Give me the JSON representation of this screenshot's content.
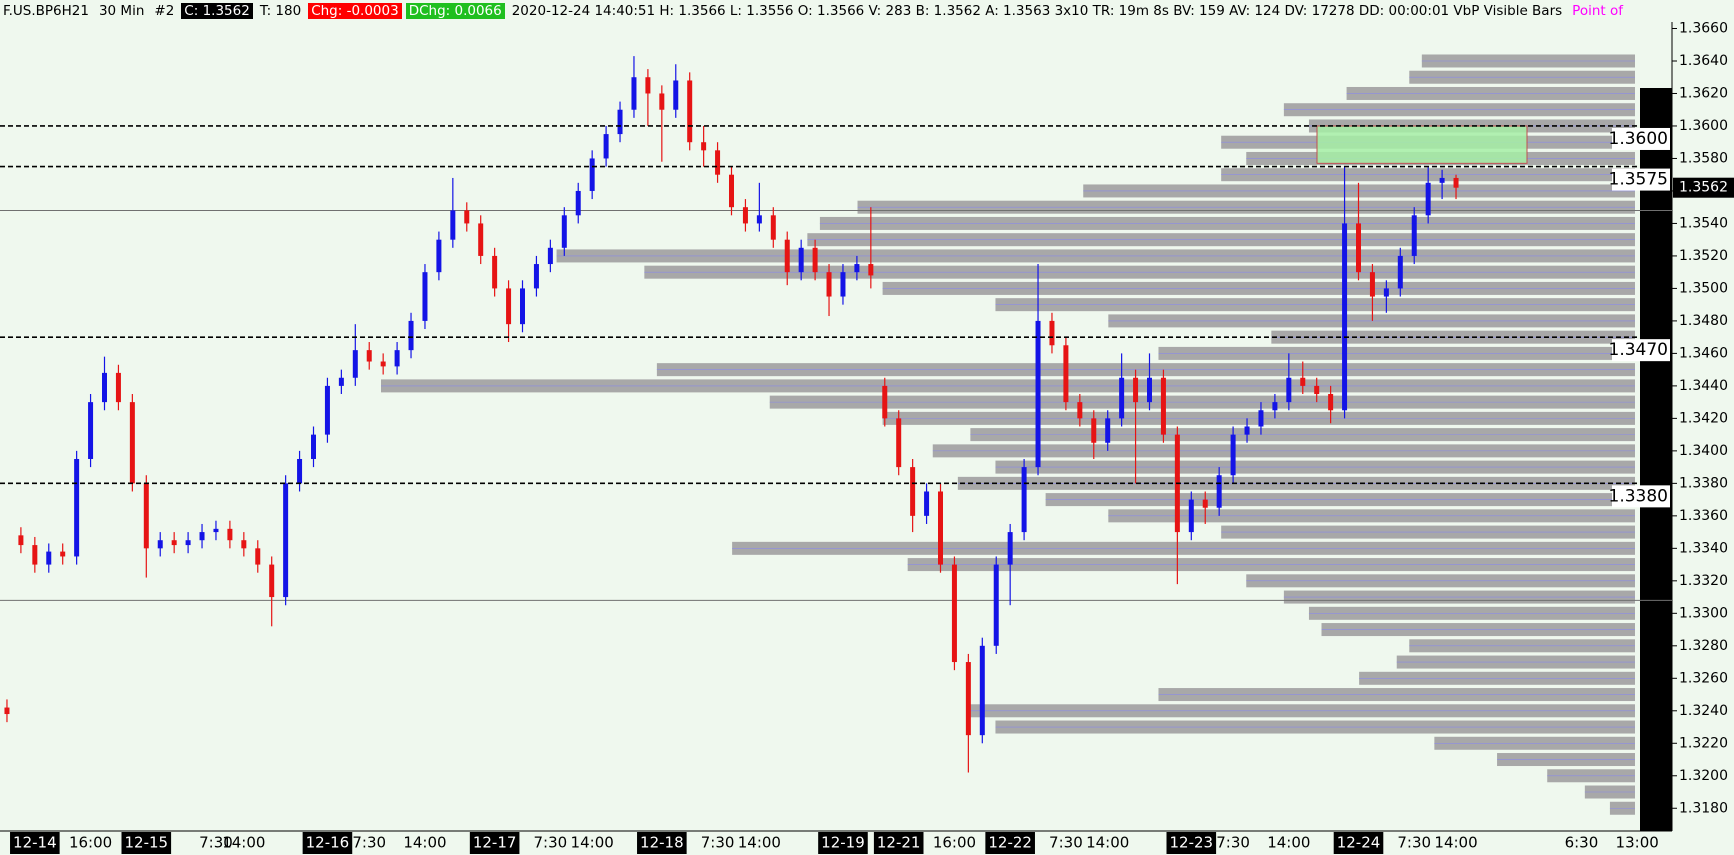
{
  "header": [
    {
      "text": "F.US.BP6H21",
      "color": "#000000"
    },
    {
      "text": "30 Min",
      "color": "#000000"
    },
    {
      "text": "#2",
      "color": "#000000"
    },
    {
      "text": "C: 1.3562",
      "color": "#ffffff",
      "background": "#000000"
    },
    {
      "text": "T: 180",
      "color": "#000000"
    },
    {
      "text": "Chg: -0.0003",
      "color": "#ffffff",
      "background": "#ff0000"
    },
    {
      "text": "DChg: 0.0066",
      "color": "#ffffff",
      "background": "#1fbf1f"
    },
    {
      "text": "2020-12-24 14:40:51 H: 1.3566 L: 1.3556 O: 1.3566 V: 283 B: 1.3562 A: 1.3563 3x10 TR: 19m 8s BV: 159 AV: 124 DV: 17278 DD: 00:00:01 VbP Visible Bars",
      "color": "#000000"
    },
    {
      "text": "Point of",
      "color": "#ff00ff"
    }
  ],
  "chart_data": {
    "type": "candlestick",
    "up_color": "#1414e6",
    "down_color": "#e61414",
    "categories": [
      null,
      null,
      "12-14",
      null,
      null,
      null,
      "16:00",
      null,
      null,
      null,
      "12-15",
      null,
      null,
      null,
      null,
      "7:30",
      null,
      "14:00",
      null,
      null,
      null,
      null,
      null,
      "12-16",
      null,
      null,
      "7:30",
      null,
      null,
      null,
      "14:00",
      null,
      null,
      null,
      null,
      "12-17",
      null,
      null,
      null,
      "7:30",
      null,
      null,
      "14:00",
      null,
      null,
      null,
      null,
      "12-18",
      null,
      null,
      null,
      "7:30",
      null,
      null,
      "14:00",
      null,
      null,
      null,
      null,
      null,
      "12-19",
      null,
      null,
      null,
      "12-21",
      null,
      null,
      null,
      "16:00",
      null,
      null,
      null,
      "12-22",
      null,
      null,
      null,
      "7:30",
      null,
      null,
      "14:00",
      null,
      null,
      null,
      null,
      null,
      "12-23",
      null,
      null,
      "7:30",
      null,
      null,
      null,
      "14:00",
      null,
      null,
      null,
      null,
      "12-24",
      null,
      null,
      null,
      "7:30",
      null,
      null,
      "14:00",
      null,
      null,
      null,
      null,
      null,
      null,
      null,
      null,
      "6:30",
      null,
      null,
      null,
      "13:00",
      null,
      null
    ],
    "open": [
      1.3242,
      1.3348,
      1.3342,
      1.333,
      1.3338,
      1.3335,
      1.3395,
      1.343,
      1.3448,
      1.343,
      1.338,
      1.334,
      1.3345,
      1.3342,
      1.3345,
      1.335,
      1.3352,
      1.3345,
      1.334,
      1.333,
      1.331,
      1.338,
      1.3395,
      1.341,
      1.344,
      1.3445,
      1.3462,
      1.3455,
      1.3452,
      1.3462,
      1.348,
      1.351,
      1.353,
      1.3548,
      1.354,
      1.352,
      1.35,
      1.3478,
      1.35,
      1.3515,
      1.3525,
      1.3545,
      1.356,
      1.358,
      1.3595,
      1.361,
      1.363,
      1.362,
      1.361,
      1.3628,
      1.359,
      1.3585,
      1.357,
      1.355,
      1.354,
      1.3545,
      1.353,
      1.351,
      1.3525,
      1.351,
      1.3495,
      1.351,
      1.3515,
      1.344,
      1.342,
      1.339,
      1.336,
      1.3375,
      1.333,
      1.327,
      1.3225,
      1.328,
      1.333,
      1.335,
      1.339,
      1.348,
      1.3465,
      1.343,
      1.342,
      1.3405,
      1.342,
      1.3445,
      1.343,
      1.3445,
      1.341,
      1.335,
      1.337,
      1.3365,
      1.3385,
      1.341,
      1.3415,
      1.3425,
      1.343,
      1.3445,
      1.344,
      1.3435,
      1.3425,
      1.354,
      1.351,
      1.3495,
      1.35,
      1.352,
      1.3545,
      1.3565,
      1.3568,
      null,
      null,
      null,
      null,
      null,
      null,
      null,
      null,
      null,
      null,
      null,
      null,
      null,
      null,
      null
    ],
    "high": [
      1.3247,
      1.3353,
      1.3347,
      1.3343,
      1.3343,
      1.34,
      1.3435,
      1.3458,
      1.3453,
      1.3435,
      1.3385,
      1.335,
      1.335,
      1.335,
      1.3355,
      1.3357,
      1.3357,
      1.335,
      1.3345,
      1.3335,
      1.3385,
      1.34,
      1.3415,
      1.3445,
      1.345,
      1.3478,
      1.3467,
      1.346,
      1.3467,
      1.3485,
      1.3515,
      1.3535,
      1.3568,
      1.3553,
      1.3545,
      1.3525,
      1.3505,
      1.3505,
      1.352,
      1.353,
      1.355,
      1.3565,
      1.3585,
      1.36,
      1.3615,
      1.3643,
      1.3635,
      1.3625,
      1.3638,
      1.3633,
      1.36,
      1.359,
      1.3575,
      1.3555,
      1.3565,
      1.355,
      1.3535,
      1.353,
      1.353,
      1.3515,
      1.3515,
      1.352,
      1.355,
      1.3445,
      1.3425,
      1.3395,
      1.338,
      1.338,
      1.3335,
      1.3275,
      1.3285,
      1.3335,
      1.3355,
      1.3395,
      1.3515,
      1.3485,
      1.347,
      1.3435,
      1.3425,
      1.3425,
      1.346,
      1.345,
      1.346,
      1.345,
      1.3415,
      1.3375,
      1.3375,
      1.339,
      1.3415,
      1.342,
      1.343,
      1.3435,
      1.346,
      1.3455,
      1.3445,
      1.344,
      1.3575,
      1.3565,
      1.3515,
      1.3505,
      1.3525,
      1.355,
      1.3575,
      1.3573,
      1.357,
      null,
      null,
      null,
      null,
      null,
      null,
      null,
      null,
      null,
      null,
      null,
      null,
      null,
      null,
      null
    ],
    "low": [
      1.3233,
      1.3337,
      1.3325,
      1.3325,
      1.333,
      1.333,
      1.339,
      1.3425,
      1.3425,
      1.3375,
      1.3322,
      1.3335,
      1.3337,
      1.3337,
      1.334,
      1.3345,
      1.334,
      1.3335,
      1.3325,
      1.3292,
      1.3305,
      1.3375,
      1.339,
      1.3405,
      1.3435,
      1.344,
      1.345,
      1.3447,
      1.3447,
      1.3457,
      1.3475,
      1.3505,
      1.3525,
      1.3535,
      1.3515,
      1.3495,
      1.3467,
      1.3473,
      1.3495,
      1.351,
      1.352,
      1.354,
      1.3555,
      1.3575,
      1.359,
      1.3605,
      1.36,
      1.3578,
      1.3605,
      1.3585,
      1.3575,
      1.3565,
      1.3545,
      1.3535,
      1.3535,
      1.3525,
      1.3502,
      1.3505,
      1.3505,
      1.3483,
      1.349,
      1.3505,
      1.35,
      1.3415,
      1.3385,
      1.335,
      1.3355,
      1.3325,
      1.3265,
      1.3202,
      1.322,
      1.3275,
      1.3305,
      1.3345,
      1.3385,
      1.346,
      1.3425,
      1.3415,
      1.3395,
      1.34,
      1.3415,
      1.338,
      1.3425,
      1.3405,
      1.3318,
      1.3345,
      1.3355,
      1.336,
      1.338,
      1.3405,
      1.341,
      1.342,
      1.3425,
      1.3435,
      1.343,
      1.3417,
      1.342,
      1.3505,
      1.348,
      1.3485,
      1.3495,
      1.3515,
      1.354,
      1.3555,
      1.3555,
      null,
      null,
      null,
      null,
      null,
      null,
      null,
      null,
      null,
      null,
      null,
      null,
      null,
      null,
      null
    ],
    "close": [
      1.3238,
      1.3342,
      1.333,
      1.3338,
      1.3335,
      1.3395,
      1.343,
      1.3448,
      1.343,
      1.338,
      1.334,
      1.3345,
      1.3342,
      1.3345,
      1.335,
      1.3352,
      1.3345,
      1.334,
      1.333,
      1.331,
      1.338,
      1.3395,
      1.341,
      1.344,
      1.3445,
      1.3462,
      1.3455,
      1.3452,
      1.3462,
      1.348,
      1.351,
      1.353,
      1.3548,
      1.354,
      1.352,
      1.35,
      1.3478,
      1.35,
      1.3515,
      1.3525,
      1.3545,
      1.356,
      1.358,
      1.3595,
      1.361,
      1.363,
      1.362,
      1.361,
      1.3628,
      1.359,
      1.3585,
      1.357,
      1.355,
      1.354,
      1.3545,
      1.353,
      1.351,
      1.3525,
      1.351,
      1.3495,
      1.351,
      1.3515,
      1.3508,
      1.342,
      1.339,
      1.336,
      1.3375,
      1.333,
      1.327,
      1.3225,
      1.328,
      1.333,
      1.335,
      1.339,
      1.348,
      1.3465,
      1.343,
      1.342,
      1.3405,
      1.342,
      1.3445,
      1.343,
      1.3445,
      1.341,
      1.335,
      1.337,
      1.3365,
      1.3385,
      1.341,
      1.3415,
      1.3425,
      1.343,
      1.3445,
      1.344,
      1.3435,
      1.3425,
      1.354,
      1.351,
      1.3495,
      1.35,
      1.352,
      1.3545,
      1.3565,
      1.3568,
      1.3562,
      null,
      null,
      null,
      null,
      null,
      null,
      null,
      null,
      null,
      null,
      null,
      null,
      null,
      null,
      null
    ],
    "ylim": [
      1.3166,
      1.3664
    ],
    "yticks": [
      {
        "value": 1.318,
        "label": "1.3180"
      },
      {
        "value": 1.32,
        "label": "1.3200"
      },
      {
        "value": 1.322,
        "label": "1.3220"
      },
      {
        "value": 1.324,
        "label": "1.3240"
      },
      {
        "value": 1.326,
        "label": "1.3260"
      },
      {
        "value": 1.328,
        "label": "1.3280"
      },
      {
        "value": 1.33,
        "label": "1.3300"
      },
      {
        "value": 1.332,
        "label": "1.3320"
      },
      {
        "value": 1.334,
        "label": "1.3340"
      },
      {
        "value": 1.336,
        "label": "1.3360"
      },
      {
        "value": 1.338,
        "label": "1.3380"
      },
      {
        "value": 1.34,
        "label": "1.3400"
      },
      {
        "value": 1.342,
        "label": "1.3420"
      },
      {
        "value": 1.344,
        "label": "1.3440"
      },
      {
        "value": 1.346,
        "label": "1.3460"
      },
      {
        "value": 1.348,
        "label": "1.3480"
      },
      {
        "value": 1.35,
        "label": "1.3500"
      },
      {
        "value": 1.352,
        "label": "1.3520"
      },
      {
        "value": 1.354,
        "label": "1.3540"
      },
      {
        "value": 1.356,
        "label": "1.3560"
      },
      {
        "value": 1.358,
        "label": "1.3580"
      },
      {
        "value": 1.36,
        "label": "1.3600"
      },
      {
        "value": 1.362,
        "label": "1.3620"
      },
      {
        "value": 1.364,
        "label": "1.3640"
      },
      {
        "value": 1.366,
        "label": "1.3660"
      }
    ],
    "levels": [
      {
        "value": 1.36,
        "label": "1.3600"
      },
      {
        "value": 1.3575,
        "label": "1.3575"
      },
      {
        "value": 1.347,
        "label": "1.3470"
      },
      {
        "value": 1.338,
        "label": "1.3380"
      }
    ],
    "reference_lines": [
      1.3548,
      1.3308
    ],
    "zone": {
      "low": 1.3577,
      "high": 1.36,
      "color": "#a6eea6"
    },
    "volume_profile": {
      "color": "#a8a8a8",
      "prices": [
        1.364,
        1.363,
        1.362,
        1.361,
        1.36,
        1.359,
        1.358,
        1.357,
        1.356,
        1.355,
        1.354,
        1.353,
        1.352,
        1.351,
        1.35,
        1.349,
        1.348,
        1.347,
        1.346,
        1.345,
        1.344,
        1.343,
        1.342,
        1.341,
        1.34,
        1.339,
        1.338,
        1.337,
        1.336,
        1.335,
        1.334,
        1.333,
        1.332,
        1.331,
        1.33,
        1.329,
        1.328,
        1.327,
        1.326,
        1.325,
        1.324,
        1.323,
        1.322,
        1.321,
        1.32,
        1.319,
        1.318
      ],
      "values": [
        17,
        18,
        23,
        28,
        26,
        33,
        31,
        33,
        44,
        62,
        65,
        66,
        86,
        79,
        60,
        51,
        42,
        29,
        38,
        78,
        100,
        69,
        60,
        53,
        56,
        51,
        54,
        47,
        42,
        33,
        72,
        58,
        31,
        28,
        26,
        25,
        18,
        19,
        22,
        38,
        53,
        51,
        16,
        11,
        7,
        4,
        2
      ]
    }
  }
}
